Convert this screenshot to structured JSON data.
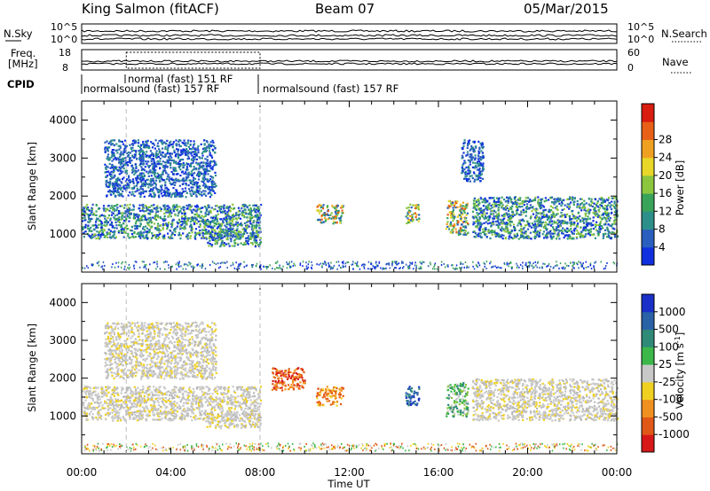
{
  "header": {
    "station": "King Salmon (fitACF)",
    "beam": "Beam 07",
    "date": "05/Mar/2015"
  },
  "top_panels": {
    "noise_left_label": "N.Sky",
    "noise_right_label": "N.Search",
    "noise_right_ticks": [
      "10^5",
      "10^0"
    ],
    "noise_left_ticks": [
      "10^5",
      "10^0"
    ],
    "freq_label_line1": "Freq.",
    "freq_label_line2": "[MHz]",
    "freq_ticks": [
      "18",
      "8"
    ],
    "nave_label": "Nave",
    "nave_ticks": [
      "60",
      "0"
    ],
    "cpid_label": "CPID",
    "cpid_segments": [
      {
        "label": "normalsound (fast) 157 RF",
        "start_hour": 0.0,
        "end_hour": 8.0
      },
      {
        "label": "normal (fast) 151 RF",
        "start_hour": 2.0,
        "end_hour": 8.0
      },
      {
        "label": "normalsound (fast) 157 RF",
        "start_hour": 8.0,
        "end_hour": 24.0
      }
    ]
  },
  "chart_data": [
    {
      "type": "heatmap",
      "name": "power",
      "ylabel": "Slant Range [km]",
      "xlabel": "",
      "x_ticks": [
        "00:00",
        "04:00",
        "08:00",
        "12:00",
        "16:00",
        "20:00",
        "00:00"
      ],
      "xlim_hours": [
        0,
        24
      ],
      "ylim": [
        0,
        4500
      ],
      "y_ticks": [
        1000,
        2000,
        3000,
        4000
      ],
      "colorbar": {
        "label": "Power [dB]",
        "ticks": [
          4,
          8,
          12,
          16,
          20,
          24,
          28
        ],
        "range": [
          0,
          32
        ],
        "colors": [
          "#1030e0",
          "#2a5fbf",
          "#2d8f8a",
          "#3aa35a",
          "#8cc63e",
          "#e8d628",
          "#f0a020",
          "#e86018",
          "#d81c10"
        ]
      },
      "echo_regions": [
        {
          "hour_start": 0.0,
          "hour_end": 8.0,
          "range_start": 900,
          "range_end": 1800,
          "level": "medium"
        },
        {
          "hour_start": 1.0,
          "hour_end": 6.0,
          "range_start": 2000,
          "range_end": 3500,
          "level": "low"
        },
        {
          "hour_start": 5.5,
          "hour_end": 8.0,
          "range_start": 700,
          "range_end": 1100,
          "level": "medium"
        },
        {
          "hour_start": 10.5,
          "hour_end": 11.7,
          "range_start": 1300,
          "range_end": 1800,
          "level": "high"
        },
        {
          "hour_start": 14.5,
          "hour_end": 15.1,
          "range_start": 1300,
          "range_end": 1800,
          "level": "high"
        },
        {
          "hour_start": 16.3,
          "hour_end": 17.3,
          "range_start": 1000,
          "range_end": 1900,
          "level": "high"
        },
        {
          "hour_start": 17.0,
          "hour_end": 18.0,
          "range_start": 2400,
          "range_end": 3500,
          "level": "low"
        },
        {
          "hour_start": 17.5,
          "hour_end": 24.0,
          "range_start": 900,
          "range_end": 2000,
          "level": "medium"
        }
      ]
    },
    {
      "type": "heatmap",
      "name": "velocity",
      "ylabel": "Slant Range [km]",
      "xlabel": "Time UT",
      "x_ticks": [
        "00:00",
        "04:00",
        "08:00",
        "12:00",
        "16:00",
        "20:00",
        "00:00"
      ],
      "xlim_hours": [
        0,
        24
      ],
      "ylim": [
        0,
        4500
      ],
      "y_ticks": [
        1000,
        2000,
        3000,
        4000
      ],
      "colorbar": {
        "label": "Velocity [m s",
        "label_superscript": "-1",
        "ticks": [
          "1000",
          "500",
          "100",
          "25",
          "-25",
          "-100",
          "-500",
          "-1000"
        ],
        "colors": [
          "#1a30c8",
          "#2a62a8",
          "#2f8a78",
          "#3cb84a",
          "#c8c8c8",
          "#f0d020",
          "#f09020",
          "#e05818",
          "#d81818"
        ]
      },
      "echo_regions": [
        {
          "hour_start": 0.0,
          "hour_end": 8.0,
          "range_start": 900,
          "range_end": 1800,
          "velocity": "near zero"
        },
        {
          "hour_start": 1.0,
          "hour_end": 6.0,
          "range_start": 2000,
          "range_end": 3500,
          "velocity": "near zero"
        },
        {
          "hour_start": 5.5,
          "hour_end": 8.0,
          "range_start": 700,
          "range_end": 1100,
          "velocity": "near zero"
        },
        {
          "hour_start": 8.5,
          "hour_end": 10.0,
          "range_start": 1700,
          "range_end": 2300,
          "velocity": "negative"
        },
        {
          "hour_start": 10.5,
          "hour_end": 11.7,
          "range_start": 1300,
          "range_end": 1800,
          "velocity": "-500 to -100"
        },
        {
          "hour_start": 14.5,
          "hour_end": 15.1,
          "range_start": 1300,
          "range_end": 1800,
          "velocity": "500 to 1000"
        },
        {
          "hour_start": 16.3,
          "hour_end": 17.3,
          "range_start": 1000,
          "range_end": 1900,
          "velocity": "100 to 500"
        },
        {
          "hour_start": 17.5,
          "hour_end": 24.0,
          "range_start": 900,
          "range_end": 2000,
          "velocity": "near zero"
        }
      ]
    }
  ]
}
